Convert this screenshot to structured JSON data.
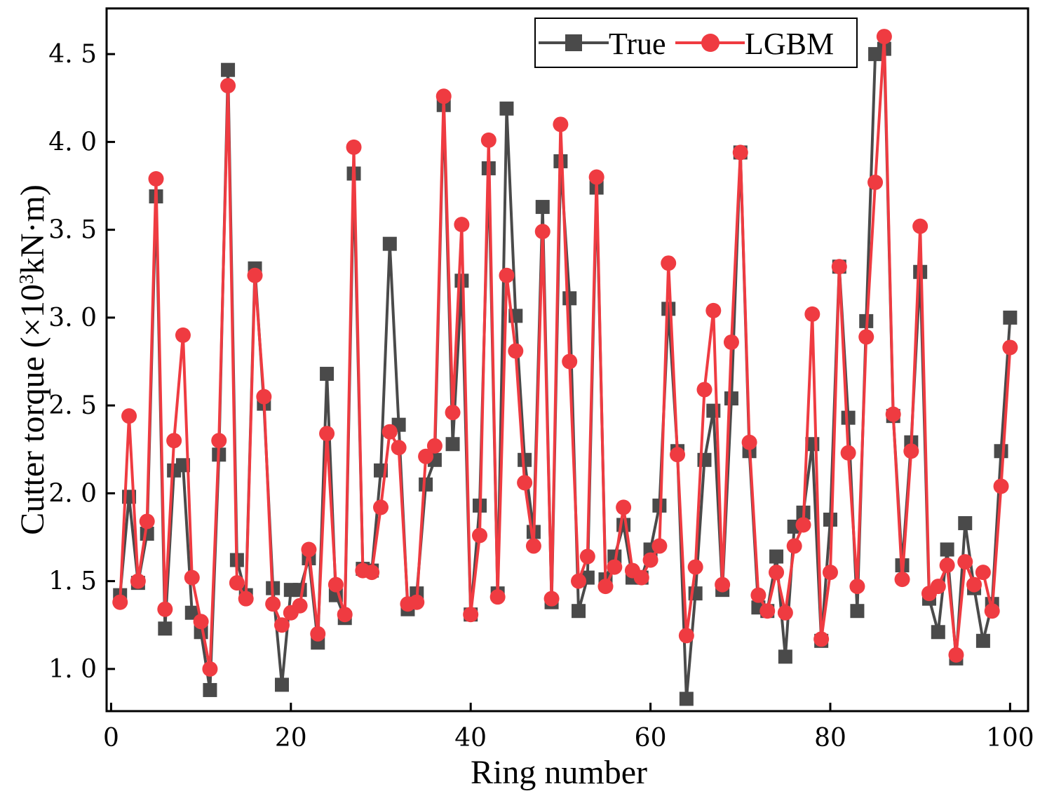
{
  "chart_data": {
    "type": "line",
    "xlabel": "Ring number",
    "ylabel": "Cutter torque (×10³kN·m)",
    "ylabel_parts": {
      "prefix": "Cutter torque (×10",
      "sup": "3",
      "suffix": "kN·m)"
    },
    "xlim": [
      -0.5,
      102
    ],
    "ylim": [
      0.76,
      4.76
    ],
    "x_ticks": [
      0,
      20,
      40,
      60,
      80,
      100
    ],
    "x_tick_labels": [
      "0",
      "20",
      "40",
      "60",
      "80",
      "100"
    ],
    "y_ticks": [
      1.0,
      1.5,
      2.0,
      2.5,
      3.0,
      3.5,
      4.0,
      4.5
    ],
    "y_tick_labels": [
      "1. 0",
      "1. 5",
      "2. 0",
      "2. 5",
      "3. 0",
      "3. 5",
      "4. 0",
      "4. 5"
    ],
    "legend_position": "top-right",
    "x": [
      1,
      2,
      3,
      4,
      5,
      6,
      7,
      8,
      9,
      10,
      11,
      12,
      13,
      14,
      15,
      16,
      17,
      18,
      19,
      20,
      21,
      22,
      23,
      24,
      25,
      26,
      27,
      28,
      29,
      30,
      31,
      32,
      33,
      34,
      35,
      36,
      37,
      38,
      39,
      40,
      41,
      42,
      43,
      44,
      45,
      46,
      47,
      48,
      49,
      50,
      51,
      52,
      53,
      54,
      55,
      56,
      57,
      58,
      59,
      60,
      61,
      62,
      63,
      64,
      65,
      66,
      67,
      68,
      69,
      70,
      71,
      72,
      73,
      74,
      75,
      76,
      77,
      78,
      79,
      80,
      81,
      82,
      83,
      84,
      85,
      86,
      87,
      88,
      89,
      90,
      91,
      92,
      93,
      94,
      95,
      96,
      97,
      98,
      99,
      100
    ],
    "series": [
      {
        "name": "True",
        "color": "#4a4a4a",
        "marker": "square",
        "values": [
          1.42,
          1.98,
          1.49,
          1.77,
          3.69,
          1.23,
          2.13,
          2.16,
          1.32,
          1.21,
          0.88,
          2.22,
          4.41,
          1.62,
          1.42,
          3.28,
          2.51,
          1.46,
          0.91,
          1.45,
          1.45,
          1.63,
          1.15,
          2.68,
          1.42,
          1.29,
          3.82,
          1.57,
          1.56,
          2.13,
          3.42,
          2.39,
          1.34,
          1.43,
          2.05,
          2.19,
          4.21,
          2.28,
          3.21,
          1.31,
          1.93,
          3.85,
          1.43,
          4.19,
          3.01,
          2.19,
          1.78,
          3.63,
          1.38,
          3.89,
          3.11,
          1.33,
          1.52,
          3.74,
          1.51,
          1.64,
          1.82,
          1.52,
          1.52,
          1.68,
          1.93,
          3.05,
          2.24,
          0.83,
          1.43,
          2.19,
          2.47,
          1.45,
          2.54,
          3.94,
          2.24,
          1.35,
          1.33,
          1.64,
          1.07,
          1.81,
          1.89,
          2.28,
          1.16,
          1.85,
          3.29,
          2.43,
          1.33,
          2.98,
          4.5,
          4.53,
          2.44,
          1.59,
          2.29,
          3.26,
          1.4,
          1.21,
          1.68,
          1.06,
          1.83,
          1.46,
          1.16,
          1.37,
          2.24,
          3.0
        ]
      },
      {
        "name": "LGBM",
        "color": "#ef3b41",
        "marker": "circle",
        "values": [
          1.38,
          2.44,
          1.5,
          1.84,
          3.79,
          1.34,
          2.3,
          2.9,
          1.52,
          1.27,
          1.0,
          2.3,
          4.32,
          1.49,
          1.4,
          3.24,
          2.55,
          1.37,
          1.25,
          1.32,
          1.36,
          1.68,
          1.2,
          2.34,
          1.48,
          1.31,
          3.97,
          1.56,
          1.55,
          1.92,
          2.35,
          2.26,
          1.37,
          1.38,
          2.21,
          2.27,
          4.26,
          2.46,
          3.53,
          1.31,
          1.76,
          4.01,
          1.41,
          3.24,
          2.81,
          2.06,
          1.7,
          3.49,
          1.4,
          4.1,
          2.75,
          1.5,
          1.64,
          3.8,
          1.47,
          1.58,
          1.92,
          1.56,
          1.52,
          1.62,
          1.7,
          3.31,
          2.22,
          1.19,
          1.58,
          2.59,
          3.04,
          1.48,
          2.86,
          3.94,
          2.29,
          1.42,
          1.33,
          1.55,
          1.32,
          1.7,
          1.82,
          3.02,
          1.17,
          1.55,
          3.29,
          2.23,
          1.47,
          2.89,
          3.77,
          4.6,
          2.45,
          1.51,
          2.24,
          3.52,
          1.43,
          1.47,
          1.59,
          1.08,
          1.61,
          1.48,
          1.55,
          1.33,
          2.04,
          2.83
        ]
      }
    ]
  }
}
